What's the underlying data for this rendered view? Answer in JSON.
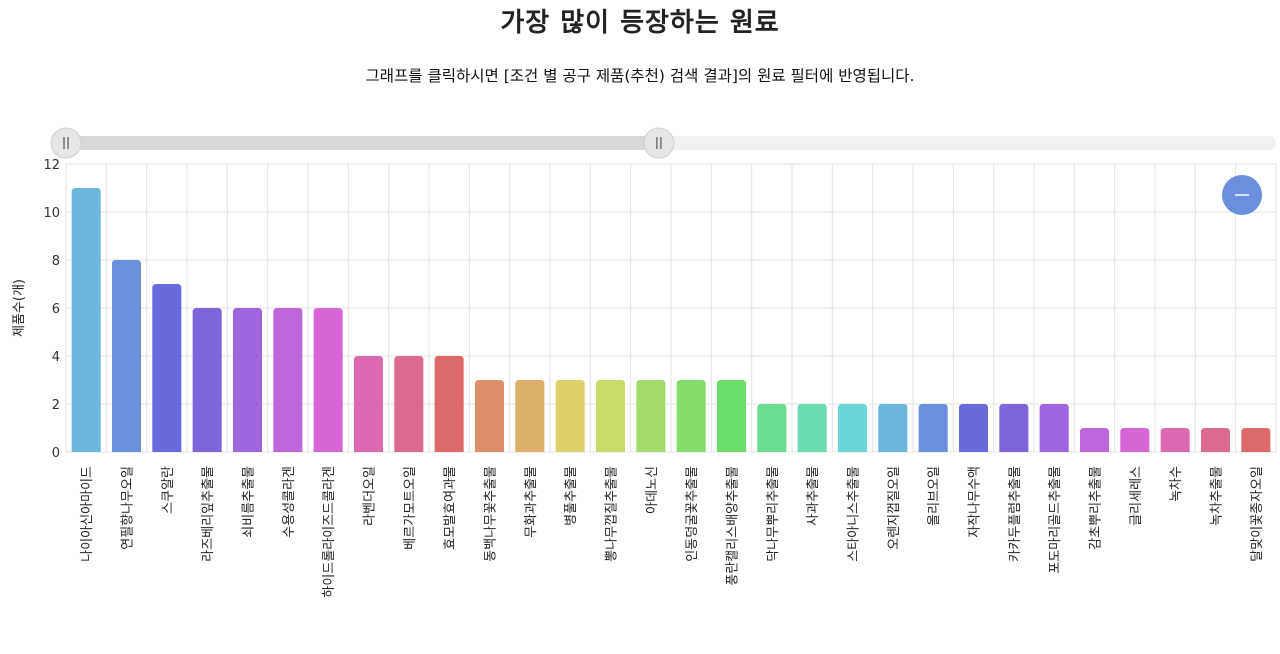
{
  "title": "가장 많이 등장하는 원료",
  "subtitle": "그래프를 클릭하시면 [조건 별 공구 제품(추천) 검색 결과]의 원료 필터에 반영됩니다.",
  "zoom_slider": {
    "range_start": 0.0,
    "range_end": 0.49
  },
  "zoom_button_icon": "minus-icon",
  "colors": {
    "grid": "#e3e3e3",
    "slider_track": "#f1f1f1",
    "slider_selected": "#d9d9d9",
    "handle": "#cfcfcf",
    "zoom_button": "#6a8fdc"
  },
  "chart_data": {
    "type": "bar",
    "title": "가장 많이 등장하는 원료",
    "ylabel": "제품수(개)",
    "xlabel": "",
    "ylim": [
      0,
      12
    ],
    "yticks": [
      0,
      2,
      4,
      6,
      8,
      10,
      12
    ],
    "grid": true,
    "categories": [
      "나이아신아마이드",
      "연필향나무오일",
      "스쿠알란",
      "라즈베리잎추출물",
      "쇠비름추출물",
      "수용성콜라겐",
      "하이드롤라이즈드콜라겐",
      "라벤더오일",
      "베르가모트오일",
      "효모발효여과물",
      "동백나무꽃추출물",
      "무화과추출물",
      "병풀추출물",
      "뽕나무껍질추출물",
      "아데노신",
      "인동덩굴꽃추출물",
      "풍란캘리스배양추출물",
      "닥나무뿌리추출물",
      "사과추출물",
      "스타아니스추출물",
      "오렌지껍질오일",
      "올리브오일",
      "자작나무수액",
      "카카두플럼추출물",
      "포도마리골드추출물",
      "감초뿌리추출물",
      "글리세레스",
      "녹차수",
      "녹차추출물",
      "달맞이꽃종자오일"
    ],
    "values": [
      11,
      8,
      7,
      6,
      6,
      6,
      6,
      4,
      4,
      4,
      3,
      3,
      3,
      3,
      3,
      3,
      3,
      2,
      2,
      2,
      2,
      2,
      2,
      2,
      2,
      1,
      1,
      1,
      1,
      1
    ],
    "bar_colors": [
      "#6ab6dc",
      "#6a8fdc",
      "#6a6adc",
      "#7f65dc",
      "#9f65dc",
      "#bf65dc",
      "#d665d6",
      "#dc6ab0",
      "#dc6a8f",
      "#dc6a6a",
      "#dc8f6a",
      "#dcb06a",
      "#dcd06a",
      "#c8dc6a",
      "#a3dc6a",
      "#86dc6a",
      "#6adc6a",
      "#6adc8f",
      "#6adcb0",
      "#6ad6dc",
      "#6ab6dc",
      "#6a8fdc",
      "#6a6adc",
      "#7f65dc",
      "#9f65dc",
      "#bf65dc",
      "#d665d6",
      "#dc6ab0",
      "#dc6a8f",
      "#dc6a6a"
    ]
  }
}
